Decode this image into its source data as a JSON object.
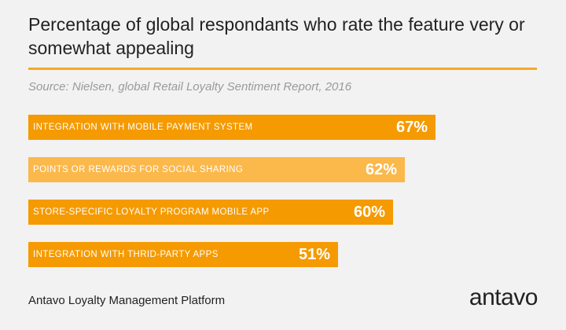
{
  "title": "Percentage of global respondants who rate the feature very or somewhat appealing",
  "source": "Source: Nielsen, global Retail Loyalty Sentiment Report, 2016",
  "footer": "Antavo Loyalty Management Platform",
  "logo_text": "antavo",
  "colors": {
    "accent": "#f7a823",
    "bar_dark": "#f59a00",
    "bar_light": "#fbb84b"
  },
  "chart_data": {
    "type": "bar",
    "orientation": "horizontal",
    "categories": [
      "INTEGRATION WITH MOBILE PAYMENT SYSTEM",
      "POINTS OR REWARDS FOR SOCIAL SHARING",
      "STORE-SPECIFIC LOYALTY PROGRAM MOBILE APP",
      "INTEGRATION WITH THRID-PARTY APPS"
    ],
    "values": [
      67,
      62,
      60,
      51
    ],
    "value_labels": [
      "67%",
      "62%",
      "60%",
      "51%"
    ],
    "unit": "%",
    "bar_colors": [
      "#f59a00",
      "#fbb84b",
      "#f59a00",
      "#f59a00"
    ],
    "grid": false,
    "legend": "none"
  }
}
